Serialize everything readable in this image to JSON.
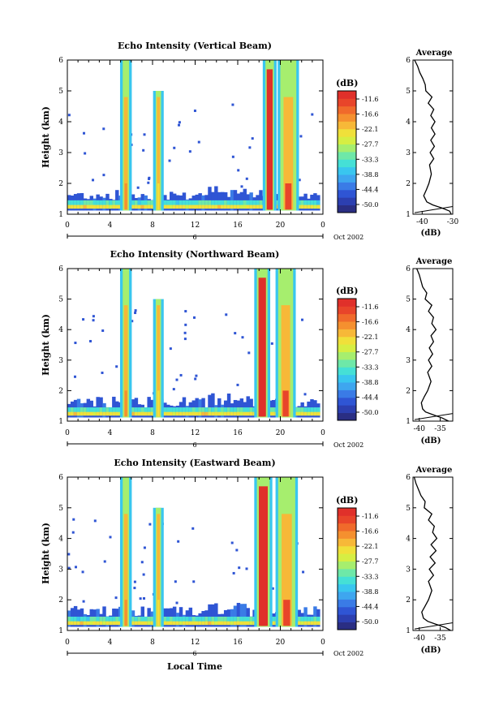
{
  "colorbar": {
    "unit_label": "(dB)",
    "ticks": [
      "-11.6",
      "-16.6",
      "-22.1",
      "-27.7",
      "-33.3",
      "-38.8",
      "-44.4",
      "-50.0"
    ],
    "colors": [
      "#2a2e83",
      "#2c3fb0",
      "#2f55d4",
      "#3a7be6",
      "#3ea6ef",
      "#39c6ef",
      "#45e0d6",
      "#6ee8a8",
      "#a6ee6e",
      "#d6ee43",
      "#f0e03a",
      "#f7b838",
      "#f5902f",
      "#f06a2b",
      "#e8452a",
      "#e0302a"
    ]
  },
  "chart_data": [
    {
      "type": "heatmap",
      "title": "Echo Intensity (Vertical Beam)",
      "ylabel": "Height (km)",
      "ylim": [
        1,
        6
      ],
      "yticks": [
        "1",
        "2",
        "3",
        "4",
        "5",
        "6"
      ],
      "xlim": [
        0,
        24
      ],
      "xticks": [
        "0",
        "4",
        "8",
        "12",
        "16",
        "20",
        "0"
      ],
      "date_axis": {
        "label": "Oct 2002",
        "mid_label": "6"
      },
      "colorbar_range_db": [
        -50.0,
        -11.6
      ],
      "strong_echo_intervals": [
        {
          "start": 5.2,
          "end": 5.8,
          "top_km": 6.0,
          "peak_db": -20
        },
        {
          "start": 8.3,
          "end": 8.8,
          "top_km": 5.0,
          "peak_db": -25
        },
        {
          "start": 18.6,
          "end": 19.4,
          "top_km": 6.0,
          "peak_db": -11.6
        },
        {
          "start": 20.0,
          "end": 21.5,
          "top_km": 6.0,
          "peak_db": -14
        }
      ],
      "profile": {
        "title": "Average",
        "xlabel": "(dB)",
        "xticks": [
          "-40",
          "-30"
        ],
        "xlim": [
          -43,
          -30
        ],
        "height_km": [
          1.0,
          1.1,
          1.2,
          1.3,
          1.4,
          1.6,
          1.8,
          2.0,
          2.3,
          2.6,
          2.8,
          3.0,
          3.2,
          3.4,
          3.6,
          3.8,
          4.0,
          4.2,
          4.4,
          4.6,
          4.8,
          5.0,
          5.2,
          5.4,
          5.6,
          5.8,
          6.0
        ],
        "mean_db": [
          -30.5,
          -31.0,
          -33.5,
          -36.5,
          -38.5,
          -39.5,
          -38.6,
          -37.8,
          -37.0,
          -37.6,
          -36.2,
          -37.4,
          -36.0,
          -37.2,
          -35.8,
          -37.0,
          -35.8,
          -37.2,
          -36.2,
          -38.0,
          -36.8,
          -38.8,
          -39.0,
          -39.8,
          -40.8,
          -41.5,
          -42.5
        ]
      }
    },
    {
      "type": "heatmap",
      "title": "Echo Intensity (Northward Beam)",
      "ylabel": "Height (km)",
      "ylim": [
        1,
        6
      ],
      "yticks": [
        "1",
        "2",
        "3",
        "4",
        "5",
        "6"
      ],
      "xlim": [
        0,
        24
      ],
      "xticks": [
        "0",
        "4",
        "8",
        "12",
        "16",
        "20",
        "0"
      ],
      "date_axis": {
        "label": "Oct 2002",
        "mid_label": "6"
      },
      "colorbar_range_db": [
        -50.0,
        -11.6
      ],
      "strong_echo_intervals": [
        {
          "start": 5.2,
          "end": 5.8,
          "top_km": 6.0,
          "peak_db": -20
        },
        {
          "start": 8.3,
          "end": 8.8,
          "top_km": 5.0,
          "peak_db": -25
        },
        {
          "start": 17.8,
          "end": 18.8,
          "top_km": 6.0,
          "peak_db": -11.6
        },
        {
          "start": 19.8,
          "end": 21.2,
          "top_km": 6.0,
          "peak_db": -14
        }
      ],
      "profile": {
        "title": "Average",
        "xlabel": "(dB)",
        "xticks": [
          "-40",
          "-35"
        ],
        "xlim": [
          -41.5,
          -32
        ],
        "height_km": [
          1.0,
          1.1,
          1.2,
          1.3,
          1.4,
          1.6,
          1.8,
          2.0,
          2.3,
          2.6,
          2.8,
          3.0,
          3.2,
          3.4,
          3.6,
          3.8,
          4.0,
          4.2,
          4.4,
          4.6,
          4.8,
          5.0,
          5.2,
          5.4,
          5.6,
          5.8,
          6.0
        ],
        "mean_db": [
          -33.0,
          -34.5,
          -36.5,
          -38.5,
          -39.2,
          -39.5,
          -38.8,
          -38.0,
          -37.2,
          -38.0,
          -37.0,
          -37.8,
          -36.8,
          -37.6,
          -36.6,
          -37.2,
          -36.0,
          -37.0,
          -36.6,
          -37.8,
          -37.0,
          -38.6,
          -38.2,
          -39.2,
          -39.6,
          -40.0,
          -40.6
        ]
      }
    },
    {
      "type": "heatmap",
      "title": "Echo Intensity (Eastward Beam)",
      "ylabel": "Height (km)",
      "xlabel": "Local Time",
      "ylim": [
        1,
        6
      ],
      "yticks": [
        "1",
        "2",
        "3",
        "4",
        "5",
        "6"
      ],
      "xlim": [
        0,
        24
      ],
      "xticks": [
        "0",
        "4",
        "8",
        "12",
        "16",
        "20",
        "0"
      ],
      "date_axis": {
        "label": "Oct 2002",
        "mid_label": "6"
      },
      "colorbar_range_db": [
        -50.0,
        -11.6
      ],
      "strong_echo_intervals": [
        {
          "start": 5.2,
          "end": 5.8,
          "top_km": 6.0,
          "peak_db": -20
        },
        {
          "start": 8.3,
          "end": 8.8,
          "top_km": 5.0,
          "peak_db": -25
        },
        {
          "start": 17.8,
          "end": 19.0,
          "top_km": 6.0,
          "peak_db": -11.6
        },
        {
          "start": 19.8,
          "end": 21.4,
          "top_km": 6.0,
          "peak_db": -14
        }
      ],
      "profile": {
        "title": "Average",
        "xlabel": "(dB)",
        "xticks": [
          "-40",
          "-35"
        ],
        "xlim": [
          -41.5,
          -32
        ],
        "height_km": [
          1.0,
          1.1,
          1.2,
          1.3,
          1.4,
          1.6,
          1.8,
          2.0,
          2.3,
          2.6,
          2.8,
          3.0,
          3.2,
          3.4,
          3.6,
          3.8,
          4.0,
          4.2,
          4.4,
          4.6,
          4.8,
          5.0,
          5.2,
          5.4,
          5.6,
          5.8,
          6.0
        ],
        "mean_db": [
          -32.5,
          -33.8,
          -36.0,
          -38.0,
          -39.0,
          -39.4,
          -38.6,
          -37.8,
          -37.0,
          -37.8,
          -36.6,
          -37.6,
          -36.2,
          -37.4,
          -36.0,
          -37.2,
          -35.8,
          -36.8,
          -36.4,
          -37.8,
          -37.0,
          -38.8,
          -38.6,
          -39.6,
          -40.2,
          -40.8,
          -41.2
        ]
      }
    }
  ]
}
